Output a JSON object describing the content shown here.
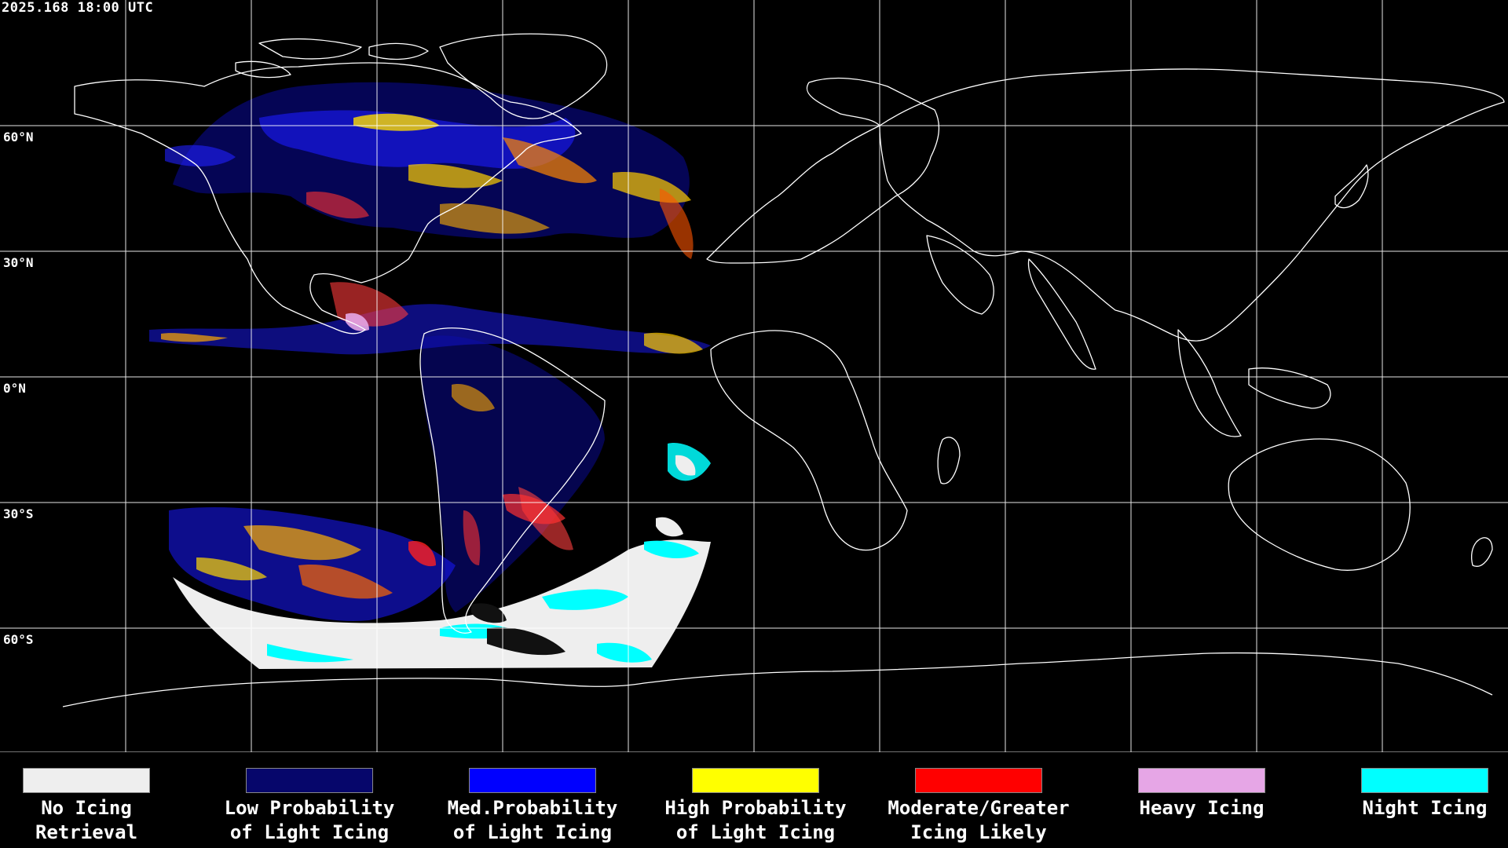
{
  "header": {
    "timestamp": "2025.168 18:00 UTC"
  },
  "map": {
    "lat_labels": [
      "60°N",
      "30°N",
      "0°N",
      "30°S",
      "60°S"
    ],
    "coastline_color": "#ffffff",
    "grid_color": "#ffffff",
    "background_color": "#000000"
  },
  "legend": {
    "items": [
      {
        "line1": "No Icing",
        "line2": "Retrieval",
        "color": "#eeeeee"
      },
      {
        "line1": "Low Probability",
        "line2": "of Light Icing",
        "color": "#06066b"
      },
      {
        "line1": "Med.Probability",
        "line2": "of Light Icing",
        "color": "#0000ff"
      },
      {
        "line1": "High Probability",
        "line2": "of Light Icing",
        "color": "#ffff00"
      },
      {
        "line1": "Moderate/Greater",
        "line2": "Icing Likely",
        "color": "#ff0000"
      },
      {
        "line1": "Heavy Icing",
        "line2": "",
        "color": "#e6a6e6"
      },
      {
        "line1": "Night Icing",
        "line2": "",
        "color": "#00ffff"
      }
    ]
  }
}
